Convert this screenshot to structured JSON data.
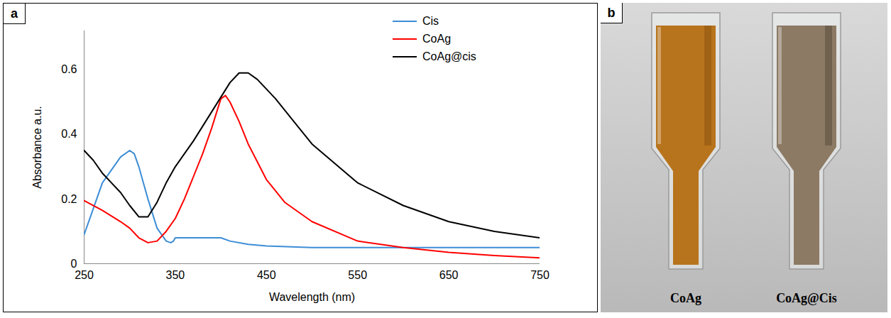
{
  "panel_labels": [
    "a",
    "b"
  ],
  "chart_data": {
    "type": "line",
    "x_label": "Wavelength (nm)",
    "y_label": "Absorbance a.u.",
    "xlim": [
      250,
      750
    ],
    "xticks": [
      250,
      350,
      450,
      550,
      650,
      750
    ],
    "ylim": [
      0,
      0.72
    ],
    "yticks": [
      0,
      0.2,
      0.4,
      0.6
    ],
    "grid": false,
    "legend": "upper right",
    "series": [
      {
        "name": "Cis",
        "color": "#3C8DD6",
        "x": [
          250,
          260,
          270,
          280,
          290,
          300,
          305,
          310,
          320,
          330,
          340,
          345,
          348,
          350,
          400,
          410,
          430,
          450,
          500,
          550,
          600,
          650,
          700,
          750
        ],
        "values": [
          0.09,
          0.17,
          0.25,
          0.29,
          0.33,
          0.35,
          0.34,
          0.3,
          0.2,
          0.11,
          0.07,
          0.065,
          0.07,
          0.08,
          0.08,
          0.07,
          0.06,
          0.055,
          0.05,
          0.05,
          0.05,
          0.05,
          0.05,
          0.05
        ]
      },
      {
        "name": "CoAg",
        "color": "#FF0000",
        "x": [
          250,
          270,
          290,
          300,
          310,
          320,
          330,
          340,
          350,
          360,
          370,
          380,
          390,
          400,
          405,
          410,
          420,
          430,
          450,
          470,
          500,
          550,
          600,
          650,
          700,
          750
        ],
        "values": [
          0.195,
          0.165,
          0.13,
          0.11,
          0.08,
          0.065,
          0.07,
          0.1,
          0.14,
          0.2,
          0.27,
          0.34,
          0.42,
          0.51,
          0.52,
          0.5,
          0.44,
          0.37,
          0.26,
          0.19,
          0.13,
          0.07,
          0.05,
          0.035,
          0.025,
          0.018
        ]
      },
      {
        "name": "CoAg@cis",
        "color": "#000000",
        "x": [
          250,
          260,
          270,
          280,
          290,
          300,
          310,
          320,
          330,
          340,
          350,
          370,
          390,
          410,
          420,
          430,
          440,
          460,
          480,
          500,
          550,
          600,
          650,
          700,
          750
        ],
        "values": [
          0.35,
          0.32,
          0.28,
          0.25,
          0.22,
          0.18,
          0.145,
          0.145,
          0.19,
          0.25,
          0.3,
          0.38,
          0.47,
          0.56,
          0.59,
          0.59,
          0.57,
          0.51,
          0.44,
          0.37,
          0.25,
          0.18,
          0.13,
          0.1,
          0.08
        ]
      }
    ]
  },
  "photo": {
    "samples": [
      "CoAg",
      "CoAg@Cis"
    ]
  }
}
